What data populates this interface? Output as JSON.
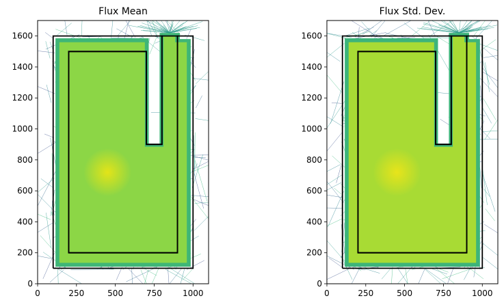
{
  "chart_data": [
    {
      "type": "heatmap",
      "title": "Flux Mean",
      "xlabel": "",
      "ylabel": "",
      "xlim": [
        0,
        1100
      ],
      "ylim": [
        0,
        1700
      ],
      "xticks": [
        0,
        250,
        500,
        750,
        1000
      ],
      "yticks": [
        0,
        200,
        400,
        600,
        800,
        1000,
        1200,
        1400,
        1600
      ],
      "colormap": "viridis",
      "fill_colors": {
        "interior": "#8cd646",
        "edge": "#3fb677",
        "source": "#e3e418",
        "rays": "#2a9a8a"
      },
      "source_point": [
        450,
        720
      ],
      "outer_boundary": [
        [
          100,
          100
        ],
        [
          1000,
          100
        ],
        [
          1000,
          1600
        ],
        [
          900,
          1600
        ],
        [
          900,
          200
        ],
        [
          200,
          200
        ],
        [
          200,
          1500
        ],
        [
          700,
          1500
        ],
        [
          700,
          900
        ],
        [
          800,
          900
        ],
        [
          800,
          1600
        ],
        [
          100,
          1600
        ],
        [
          100,
          100
        ]
      ],
      "inner_boundary": [
        [
          200,
          200
        ],
        [
          900,
          200
        ],
        [
          900,
          1600
        ],
        [
          800,
          1600
        ],
        [
          800,
          900
        ],
        [
          700,
          900
        ],
        [
          700,
          1500
        ],
        [
          200,
          1500
        ],
        [
          200,
          200
        ]
      ]
    },
    {
      "type": "heatmap",
      "title": "Flux Std. Dev.",
      "xlabel": "",
      "ylabel": "",
      "xlim": [
        0,
        1100
      ],
      "ylim": [
        0,
        1700
      ],
      "xticks": [
        0,
        250,
        500,
        750,
        1000
      ],
      "yticks": [
        0,
        200,
        400,
        600,
        800,
        1000,
        1200,
        1400,
        1600
      ],
      "colormap": "viridis",
      "fill_colors": {
        "interior": "#a8db34",
        "edge": "#3db47a",
        "source": "#e8e41a",
        "rays": "#2a9a8a"
      },
      "source_point": [
        450,
        720
      ],
      "outer_boundary": [
        [
          100,
          100
        ],
        [
          1000,
          100
        ],
        [
          1000,
          1600
        ],
        [
          900,
          1600
        ],
        [
          900,
          200
        ],
        [
          200,
          200
        ],
        [
          200,
          1500
        ],
        [
          700,
          1500
        ],
        [
          700,
          900
        ],
        [
          800,
          900
        ],
        [
          800,
          1600
        ],
        [
          100,
          1600
        ],
        [
          100,
          100
        ]
      ],
      "inner_boundary": [
        [
          200,
          200
        ],
        [
          900,
          200
        ],
        [
          900,
          1600
        ],
        [
          800,
          1600
        ],
        [
          800,
          900
        ],
        [
          700,
          900
        ],
        [
          700,
          1500
        ],
        [
          200,
          1500
        ],
        [
          200,
          200
        ]
      ]
    }
  ]
}
